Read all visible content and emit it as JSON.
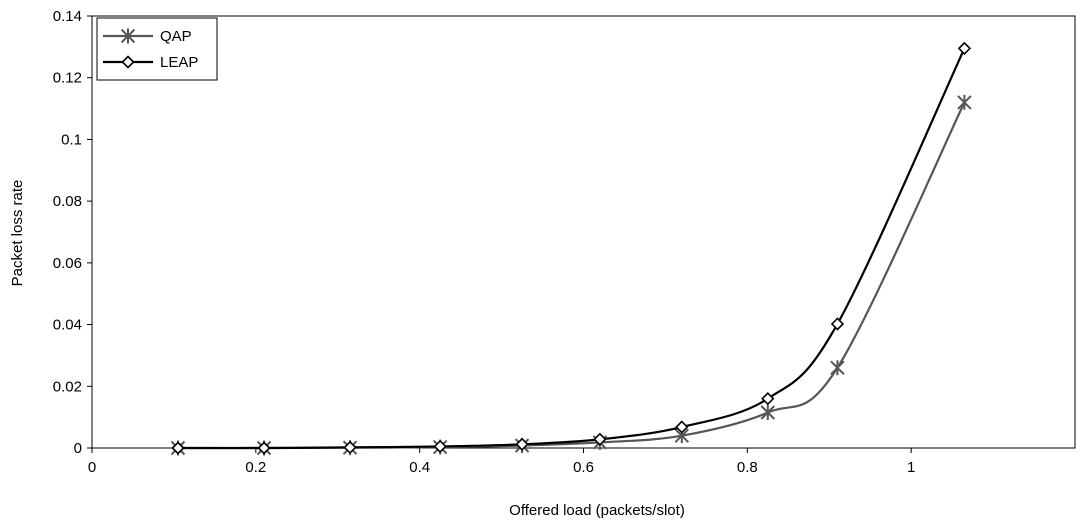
{
  "chart_data": {
    "type": "line",
    "title": "",
    "xlabel": "Offered load (packets/slot)",
    "ylabel": "Packet loss rate",
    "xlim": [
      0,
      1.2
    ],
    "ylim": [
      0,
      0.14
    ],
    "x_ticks": [
      "0",
      "0.2",
      "0.4",
      "0.6",
      "0.8",
      "1"
    ],
    "x_tick_values": [
      0,
      0.2,
      0.4,
      0.6,
      0.8,
      1.0
    ],
    "y_ticks": [
      "0",
      "0.02",
      "0.04",
      "0.06",
      "0.08",
      "0.1",
      "0.12",
      "0.14"
    ],
    "y_tick_values": [
      0,
      0.02,
      0.04,
      0.06,
      0.08,
      0.1,
      0.12,
      0.14
    ],
    "grid": false,
    "legend_position": "top-left",
    "series": [
      {
        "name": "QAP",
        "marker": "asterisk",
        "color": "#555555",
        "x": [
          0.105,
          0.21,
          0.315,
          0.425,
          0.525,
          0.62,
          0.72,
          0.825,
          0.91,
          1.065
        ],
        "y": [
          0.0,
          0.0,
          0.0001,
          0.0003,
          0.0008,
          0.0018,
          0.004,
          0.0115,
          0.026,
          0.112
        ]
      },
      {
        "name": "LEAP",
        "marker": "diamond",
        "color": "#000000",
        "x": [
          0.105,
          0.21,
          0.315,
          0.425,
          0.525,
          0.62,
          0.72,
          0.825,
          0.91,
          1.065
        ],
        "y": [
          0.0,
          0.0,
          0.0002,
          0.0005,
          0.0012,
          0.0028,
          0.0068,
          0.016,
          0.0402,
          0.1295
        ]
      }
    ]
  }
}
